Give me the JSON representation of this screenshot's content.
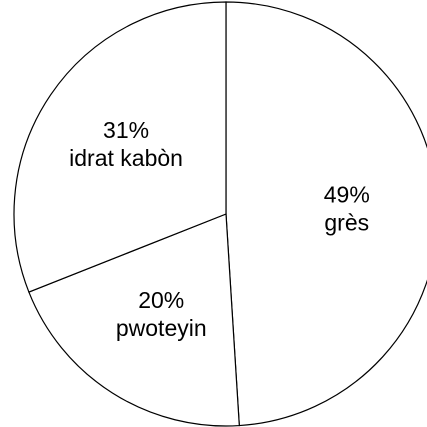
{
  "chart_data": {
    "type": "pie",
    "categories": [
      "grès",
      "pwoteyin",
      "idrat kabòn"
    ],
    "values": [
      49,
      20,
      31
    ],
    "value_labels": [
      "49%",
      "20%",
      "31%"
    ],
    "colors": [
      "#ffffff",
      "#ffffff",
      "#ffffff"
    ]
  }
}
